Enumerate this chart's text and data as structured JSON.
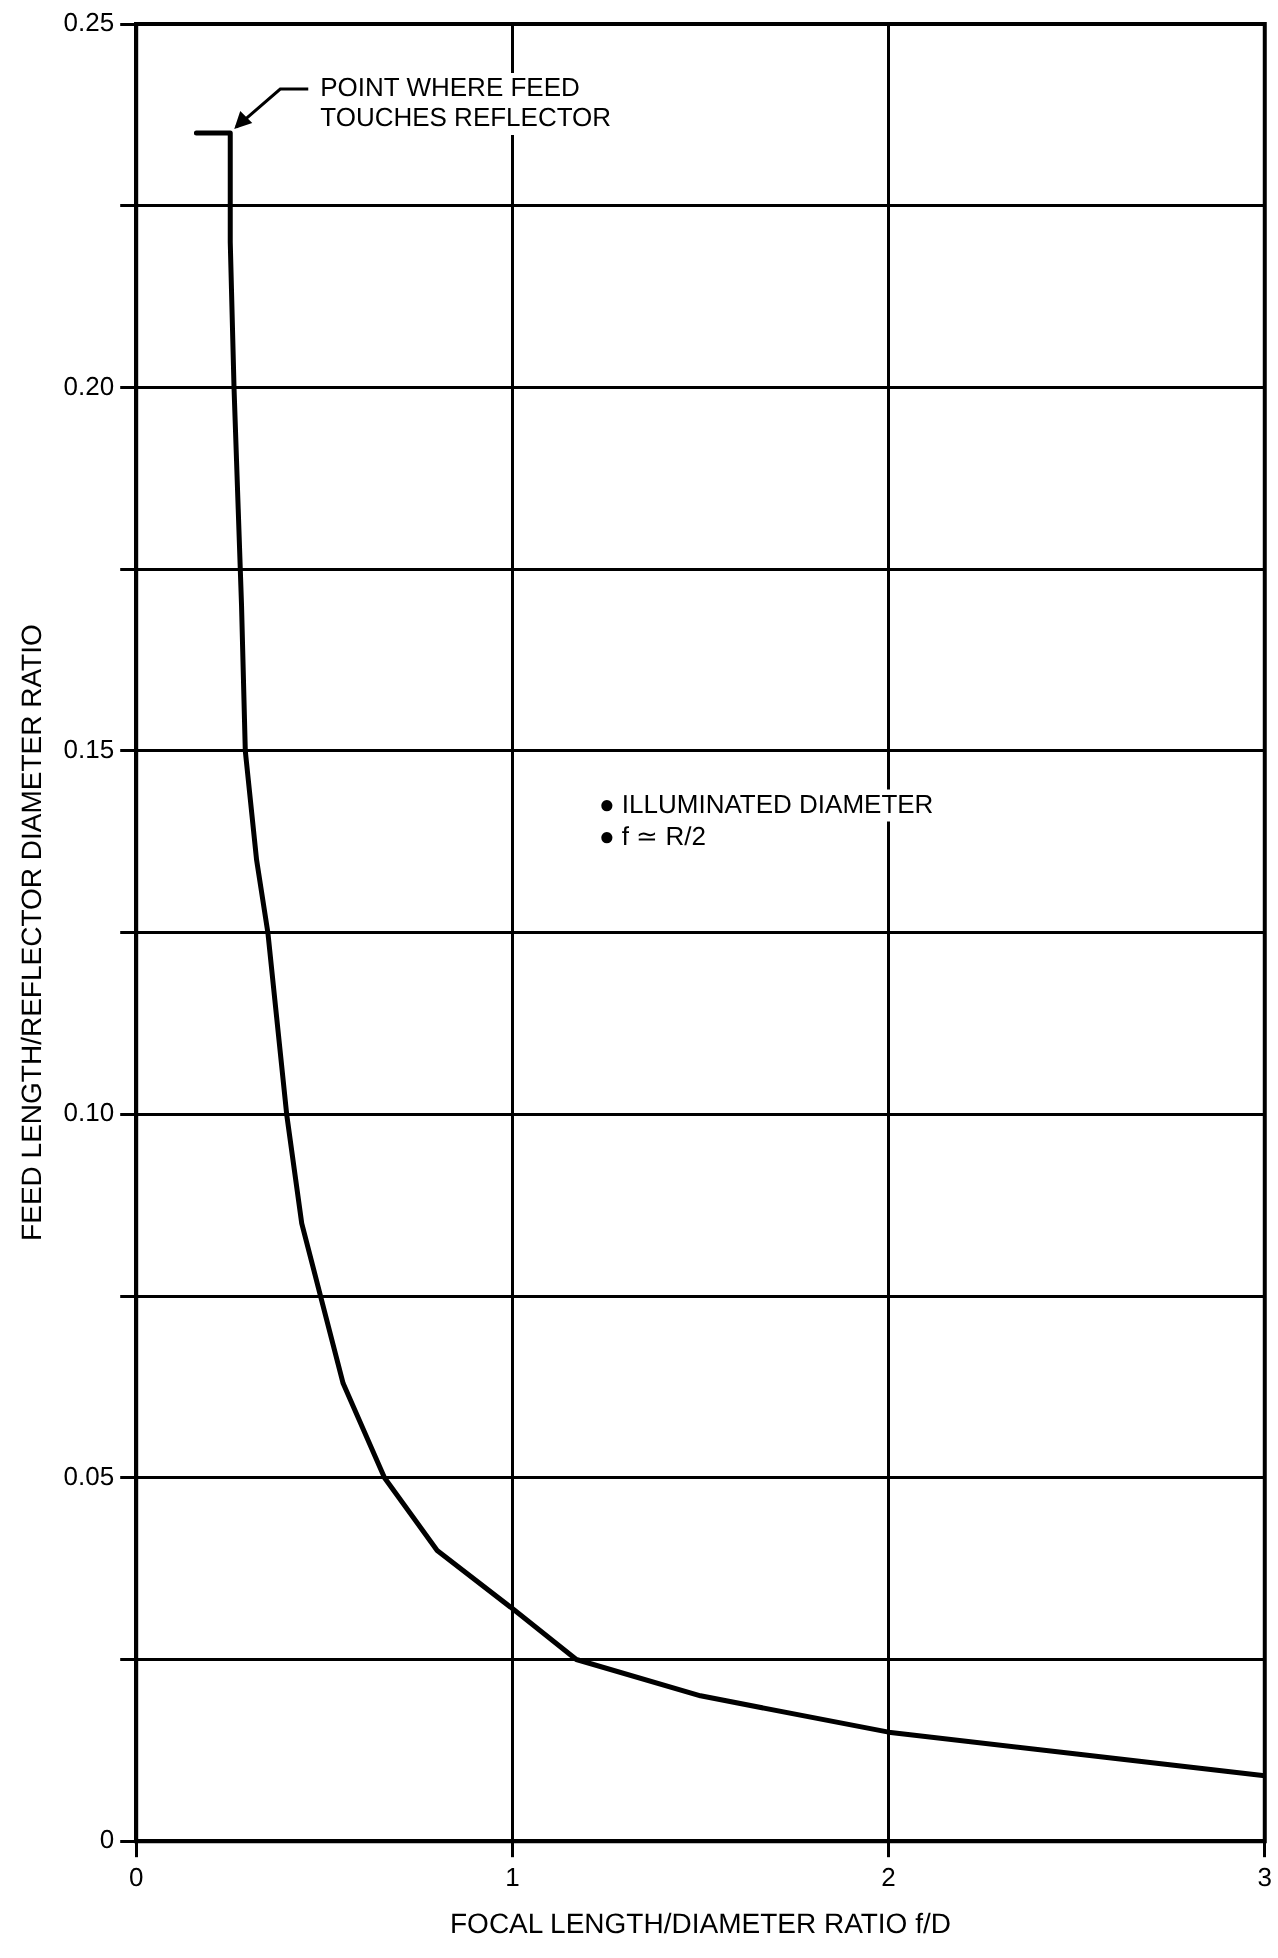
{
  "chart_data": {
    "type": "line",
    "xlabel": "FOCAL LENGTH/DIAMETER RATIO f/D",
    "ylabel": "FEED LENGTH/REFLECTOR DIAMETER RATIO",
    "xlim": [
      0,
      3
    ],
    "xticks": [
      0,
      1,
      2,
      3
    ],
    "ylim": [
      0,
      0.25
    ],
    "yticks": [
      0,
      {
        "value": 0.025,
        "label": null
      },
      0.05,
      {
        "value": 0.075,
        "label": null
      },
      {
        "value": 0.1,
        "label": "0.10"
      },
      {
        "value": 0.125,
        "label": null
      },
      0.15,
      {
        "value": 0.175,
        "label": null
      },
      {
        "value": 0.2,
        "label": "0.20"
      },
      {
        "value": 0.225,
        "label": null
      },
      0.25
    ],
    "grid": true,
    "legend": false,
    "marker": "none",
    "line_style": "solid",
    "series": [
      {
        "color": "#000000",
        "x": [
          0.16,
          0.25,
          0.25,
          0.26,
          0.28,
          0.29,
          0.32,
          0.35,
          0.4,
          0.44,
          0.49,
          0.55,
          0.66,
          0.8,
          1.0,
          1.17,
          1.5,
          2.0,
          2.5,
          3.0
        ],
        "values": [
          0.235,
          0.235,
          0.22,
          0.2,
          0.17,
          0.15,
          0.135,
          0.125,
          0.1,
          0.085,
          0.075,
          0.063,
          0.05,
          0.04,
          0.032,
          0.025,
          0.02,
          0.015,
          0.012,
          0.009
        ]
      }
    ],
    "annotations": [
      {
        "text": "POINT WHERE FEED TOUCHES REFLECTOR",
        "x": 0.25,
        "y": 0.235
      },
      "● ILLUMINATED DIAMETER",
      "● f ≃ R/2"
    ]
  }
}
